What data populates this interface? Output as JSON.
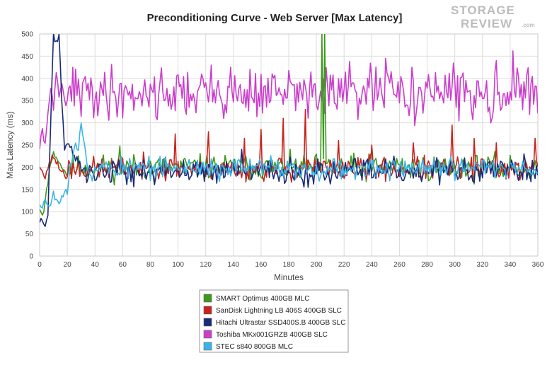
{
  "logo": {
    "line1": "STORAGE",
    "line2": "REVIEW",
    "suffix": ".com"
  },
  "chart_data": {
    "type": "line",
    "title": "Preconditioning Curve - Web Server [Max Latency]",
    "xlabel": "Minutes",
    "ylabel": "Max Latency (ms)",
    "xlim": [
      0,
      360
    ],
    "ylim": [
      0,
      500
    ],
    "x_ticks": [
      0,
      20,
      40,
      60,
      80,
      100,
      120,
      140,
      160,
      180,
      200,
      220,
      240,
      260,
      280,
      300,
      320,
      340,
      360
    ],
    "y_ticks": [
      0,
      50,
      100,
      150,
      200,
      250,
      300,
      350,
      400,
      450,
      500
    ],
    "grid": true,
    "legend_position": "bottom-center",
    "sample_interval_minutes": 1,
    "series": [
      {
        "name": "SMART Optimus 400GB MLC",
        "color": "#3a9a1a",
        "profile": {
          "initial_minutes": [
            0,
            2,
            4,
            6,
            8,
            10,
            12,
            14,
            16,
            18,
            20
          ],
          "initial_values": [
            110,
            95,
            120,
            170,
            215,
            230,
            225,
            210,
            200,
            190,
            185
          ],
          "steady_mean": 185,
          "steady_range": [
            160,
            235
          ],
          "spikes": [
            {
              "minute": 58,
              "value": 248
            },
            {
              "minute": 204,
              "value": 500
            },
            {
              "minute": 206,
              "value": 500
            }
          ]
        }
      },
      {
        "name": "SanDisk Lightning LB 406S 400GB SLC",
        "color": "#c8231c",
        "profile": {
          "initial_minutes": [
            0,
            2,
            4,
            6,
            8,
            10,
            12,
            14,
            16,
            18,
            20
          ],
          "initial_values": [
            205,
            190,
            170,
            200,
            215,
            225,
            215,
            200,
            195,
            185,
            180
          ],
          "steady_mean": 185,
          "steady_range": [
            160,
            230
          ],
          "spikes": [
            {
              "minute": 98,
              "value": 275
            },
            {
              "minute": 122,
              "value": 280
            },
            {
              "minute": 148,
              "value": 265
            },
            {
              "minute": 160,
              "value": 285
            },
            {
              "minute": 176,
              "value": 310
            },
            {
              "minute": 192,
              "value": 330
            },
            {
              "minute": 216,
              "value": 260
            },
            {
              "minute": 240,
              "value": 250
            },
            {
              "minute": 270,
              "value": 255
            },
            {
              "minute": 298,
              "value": 295
            },
            {
              "minute": 314,
              "value": 265
            },
            {
              "minute": 330,
              "value": 255
            },
            {
              "minute": 358,
              "value": 265
            }
          ]
        }
      },
      {
        "name": "Hitachi Ultrastar SSD400S.B 400GB SLC",
        "color": "#1a2a7a",
        "profile": {
          "initial_minutes": [
            0,
            2,
            4,
            6,
            8,
            10,
            12,
            14,
            16,
            18,
            20,
            22,
            24,
            26,
            28,
            30
          ],
          "initial_values": [
            80,
            85,
            75,
            95,
            300,
            500,
            480,
            500,
            350,
            240,
            260,
            250,
            230,
            220,
            210,
            200
          ],
          "steady_mean": 170,
          "steady_range": [
            150,
            225
          ],
          "spikes": [
            {
              "minute": 146,
              "value": 240
            },
            {
              "minute": 256,
              "value": 225
            },
            {
              "minute": 350,
              "value": 230
            }
          ]
        }
      },
      {
        "name": "Toshiba MKx001GRZB 400GB SLC",
        "color": "#cc3dcc",
        "profile": {
          "initial_minutes": [
            0,
            2,
            4,
            6,
            8,
            10,
            12,
            14,
            16,
            18,
            20
          ],
          "initial_values": [
            245,
            280,
            250,
            330,
            380,
            330,
            410,
            360,
            380,
            350,
            345
          ],
          "steady_mean": 345,
          "steady_range": [
            290,
            440
          ],
          "spikes": [
            {
              "minute": 24,
              "value": 425
            },
            {
              "minute": 124,
              "value": 430
            },
            {
              "minute": 168,
              "value": 410
            },
            {
              "minute": 250,
              "value": 445
            },
            {
              "minute": 330,
              "value": 440
            },
            {
              "minute": 342,
              "value": 462
            }
          ]
        }
      },
      {
        "name": "STEC s840 800GB MLC",
        "color": "#3ab4e8",
        "profile": {
          "initial_minutes": [
            0,
            2,
            4,
            6,
            8,
            10,
            12,
            14,
            16,
            18,
            20,
            22,
            24,
            26,
            28,
            30,
            32,
            34
          ],
          "initial_values": [
            120,
            115,
            125,
            120,
            115,
            140,
            130,
            125,
            130,
            150,
            145,
            200,
            230,
            250,
            240,
            300,
            260,
            220
          ],
          "steady_mean": 195,
          "steady_range": [
            165,
            230
          ],
          "spikes": []
        }
      }
    ]
  }
}
